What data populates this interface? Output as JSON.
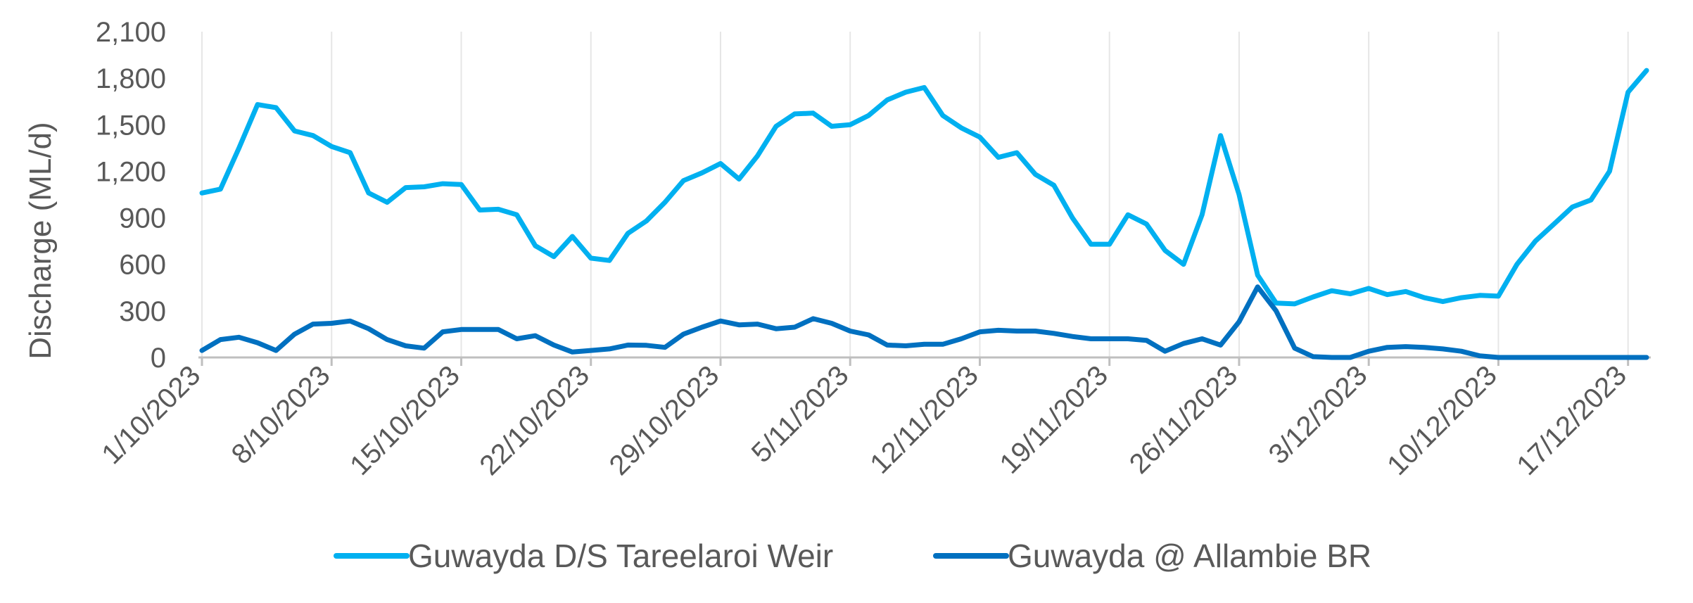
{
  "chart_data": {
    "type": "line",
    "title": "",
    "xlabel": "",
    "ylabel": "Discharge (ML/d)",
    "ylim": [
      0,
      2100
    ],
    "yticks": [
      "0",
      "300",
      "600",
      "900",
      "1,200",
      "1,500",
      "1,800",
      "2,100"
    ],
    "xticks": [
      "1/10/2023",
      "8/10/2023",
      "15/10/2023",
      "22/10/2023",
      "29/10/2023",
      "5/11/2023",
      "12/11/2023",
      "19/11/2023",
      "26/11/2023",
      "3/12/2023",
      "10/12/2023",
      "17/12/2023"
    ],
    "x_start": "1/10/2023",
    "x_end": "18/12/2023",
    "grid": "vertical",
    "legend_position": "bottom",
    "series": [
      {
        "name": "Guwayda D/S Tareelaroi Weir",
        "color": "#00B0F0",
        "values": [
          1060,
          1085,
          1350,
          1630,
          1610,
          1460,
          1430,
          1360,
          1320,
          1060,
          1000,
          1095,
          1100,
          1120,
          1115,
          950,
          955,
          920,
          720,
          650,
          780,
          640,
          625,
          800,
          880,
          1000,
          1140,
          1190,
          1250,
          1150,
          1300,
          1490,
          1570,
          1575,
          1490,
          1500,
          1560,
          1660,
          1710,
          1740,
          1560,
          1480,
          1420,
          1290,
          1320,
          1180,
          1110,
          900,
          730,
          730,
          920,
          860,
          690,
          600,
          920,
          1430,
          1050,
          530,
          350,
          345,
          390,
          430,
          410,
          445,
          405,
          425,
          385,
          360,
          385,
          400,
          395,
          600,
          750,
          860,
          970,
          1015,
          1200,
          1710,
          1850
        ]
      },
      {
        "name": "Guwayda @ Allambie BR",
        "color": "#0070C0",
        "values": [
          45,
          115,
          130,
          95,
          45,
          150,
          215,
          220,
          235,
          185,
          115,
          75,
          60,
          165,
          180,
          180,
          180,
          120,
          140,
          80,
          35,
          45,
          55,
          80,
          78,
          65,
          150,
          195,
          235,
          210,
          215,
          185,
          195,
          250,
          220,
          170,
          145,
          80,
          75,
          85,
          85,
          120,
          165,
          175,
          170,
          170,
          155,
          135,
          120,
          120,
          120,
          110,
          40,
          90,
          120,
          80,
          230,
          455,
          300,
          60,
          5,
          0,
          0,
          40,
          65,
          70,
          65,
          55,
          40,
          10,
          0,
          0,
          0,
          0,
          0,
          0,
          0,
          0,
          0
        ]
      }
    ]
  }
}
